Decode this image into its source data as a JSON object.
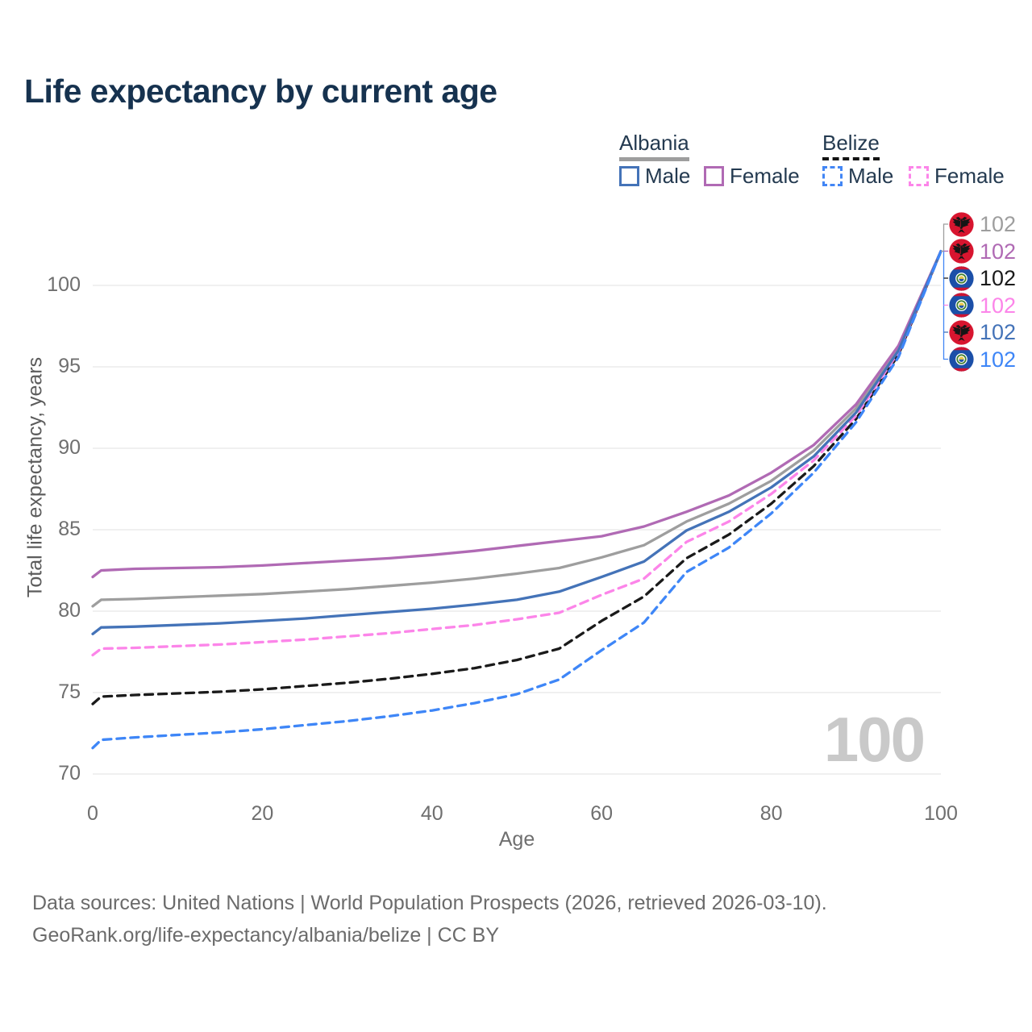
{
  "title": "Life expectancy by current age",
  "legend": {
    "groups": [
      {
        "label": "Albania",
        "style": "solid",
        "underline_color": "#9e9e9e",
        "items": [
          {
            "label": "Male",
            "color": "#4473b8"
          },
          {
            "label": "Female",
            "color": "#b06ab4"
          }
        ]
      },
      {
        "label": "Belize",
        "style": "dashed",
        "underline_color": "#141414",
        "items": [
          {
            "label": "Male",
            "color": "#4286f5"
          },
          {
            "label": "Female",
            "color": "#fc85e9"
          }
        ]
      }
    ]
  },
  "watermark": "100",
  "footer": {
    "line1": "Data sources: United Nations | World Population Prospects (2026, retrieved 2026-03-10).",
    "line2": "GeoRank.org/life-expectancy/albania/belize | CC BY"
  },
  "chart_data": {
    "type": "line",
    "title": "Life expectancy by current age",
    "xlabel": "Age",
    "ylabel": "Total life expectancy, years",
    "xlim": [
      0,
      100
    ],
    "ylim": [
      70,
      100
    ],
    "xticks": [
      0,
      20,
      40,
      60,
      80,
      100
    ],
    "yticks": [
      70,
      75,
      80,
      85,
      90,
      95,
      100
    ],
    "grid": "horizontal",
    "gridline_color": "#ececec",
    "ages": [
      0,
      1,
      5,
      10,
      15,
      20,
      25,
      30,
      35,
      40,
      45,
      50,
      55,
      60,
      65,
      70,
      75,
      80,
      85,
      90,
      95,
      100
    ],
    "series": [
      {
        "id": "albania-both",
        "name": "Albania — Both sexes",
        "country": "Albania",
        "sex": "both",
        "flag": "albania",
        "color": "#9e9e9e",
        "dash": "solid",
        "end_label": "102",
        "values": [
          80.3,
          80.7,
          80.75,
          80.85,
          80.95,
          81.05,
          81.2,
          81.35,
          81.55,
          81.75,
          82.0,
          82.3,
          82.65,
          83.3,
          84.05,
          85.5,
          86.6,
          88.0,
          89.85,
          92.45,
          96.15,
          102.1
        ]
      },
      {
        "id": "albania-female",
        "name": "Albania — Female",
        "country": "Albania",
        "sex": "female",
        "flag": "albania",
        "color": "#b06ab4",
        "dash": "solid",
        "end_label": "102",
        "values": [
          82.1,
          82.5,
          82.6,
          82.65,
          82.7,
          82.8,
          82.95,
          83.1,
          83.25,
          83.45,
          83.7,
          84.0,
          84.3,
          84.6,
          85.2,
          86.1,
          87.1,
          88.5,
          90.2,
          92.7,
          96.3,
          102.1
        ]
      },
      {
        "id": "belize-both",
        "name": "Belize — Both sexes",
        "country": "Belize",
        "sex": "both",
        "flag": "belize",
        "color": "#1a1a1a",
        "dash": "dashed",
        "end_label": "102",
        "values": [
          74.3,
          74.75,
          74.85,
          74.95,
          75.05,
          75.2,
          75.4,
          75.6,
          75.85,
          76.15,
          76.5,
          77.0,
          77.7,
          79.4,
          80.9,
          83.25,
          84.7,
          86.6,
          88.9,
          91.8,
          95.75,
          102.1
        ]
      },
      {
        "id": "belize-female",
        "name": "Belize — Female",
        "country": "Belize",
        "sex": "female",
        "flag": "belize",
        "color": "#fc85e9",
        "dash": "dashed",
        "end_label": "102",
        "values": [
          77.3,
          77.7,
          77.75,
          77.85,
          77.95,
          78.1,
          78.25,
          78.45,
          78.65,
          78.9,
          79.15,
          79.5,
          79.9,
          81.0,
          82.0,
          84.25,
          85.5,
          87.2,
          89.25,
          92.0,
          95.9,
          102.1
        ]
      },
      {
        "id": "albania-male",
        "name": "Albania — Male",
        "country": "Albania",
        "sex": "male",
        "flag": "albania",
        "color": "#4473b8",
        "dash": "solid",
        "end_label": "102",
        "values": [
          78.6,
          79.0,
          79.05,
          79.15,
          79.25,
          79.4,
          79.55,
          79.75,
          79.95,
          80.15,
          80.4,
          80.7,
          81.2,
          82.1,
          83.05,
          84.95,
          86.1,
          87.6,
          89.5,
          92.2,
          96.0,
          102.1
        ]
      },
      {
        "id": "belize-male",
        "name": "Belize — Male",
        "country": "Belize",
        "sex": "male",
        "flag": "belize",
        "color": "#3e86f7",
        "dash": "dashed",
        "end_label": "102",
        "values": [
          71.6,
          72.1,
          72.25,
          72.4,
          72.55,
          72.75,
          73.0,
          73.25,
          73.55,
          73.9,
          74.35,
          74.9,
          75.8,
          77.6,
          79.3,
          82.4,
          83.9,
          86.0,
          88.5,
          91.6,
          95.6,
          102.1
        ]
      }
    ]
  }
}
